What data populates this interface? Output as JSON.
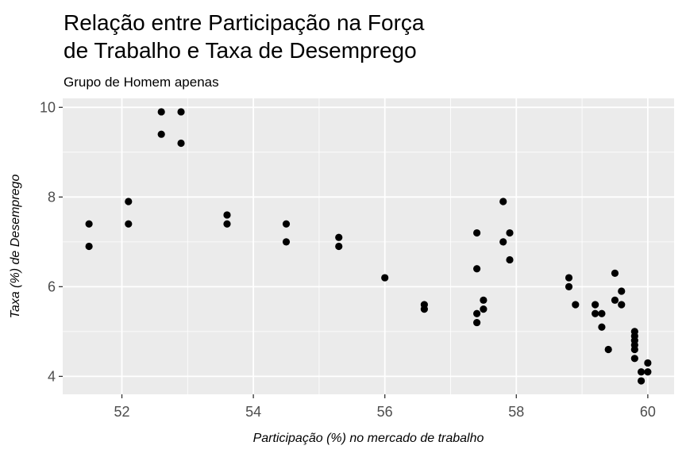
{
  "chart_data": {
    "type": "scatter",
    "title_lines": [
      "Relação entre Participação na Força",
      "de Trabalho e Taxa de Desemprego"
    ],
    "subtitle": "Grupo de Homem apenas",
    "xlabel": "Participação (%) no mercado de trabalho",
    "ylabel": "Taxa (%) de Desemprego",
    "xlim": [
      51.1,
      60.4
    ],
    "ylim": [
      3.6,
      10.2
    ],
    "x_ticks": [
      52,
      54,
      56,
      58,
      60
    ],
    "y_ticks": [
      4,
      6,
      8,
      10
    ],
    "x_tick_labels": [
      "52",
      "54",
      "56",
      "58",
      "60"
    ],
    "y_tick_labels": [
      "4",
      "6",
      "8",
      "10"
    ],
    "grid": true,
    "colors": {
      "panel": "#ebebeb",
      "grid": "#ffffff",
      "point": "#000000"
    },
    "points": [
      {
        "x": 51.5,
        "y": 7.4
      },
      {
        "x": 51.5,
        "y": 6.9
      },
      {
        "x": 52.1,
        "y": 7.9
      },
      {
        "x": 52.1,
        "y": 7.4
      },
      {
        "x": 52.6,
        "y": 9.9
      },
      {
        "x": 52.6,
        "y": 9.4
      },
      {
        "x": 52.9,
        "y": 9.9
      },
      {
        "x": 52.9,
        "y": 9.2
      },
      {
        "x": 53.6,
        "y": 7.6
      },
      {
        "x": 53.6,
        "y": 7.4
      },
      {
        "x": 54.5,
        "y": 7.4
      },
      {
        "x": 54.5,
        "y": 7.0
      },
      {
        "x": 55.3,
        "y": 7.1
      },
      {
        "x": 55.3,
        "y": 6.9
      },
      {
        "x": 56.0,
        "y": 6.2
      },
      {
        "x": 56.6,
        "y": 5.6
      },
      {
        "x": 56.6,
        "y": 5.5
      },
      {
        "x": 57.4,
        "y": 7.2
      },
      {
        "x": 57.4,
        "y": 6.4
      },
      {
        "x": 57.4,
        "y": 5.4
      },
      {
        "x": 57.4,
        "y": 5.2
      },
      {
        "x": 57.5,
        "y": 5.7
      },
      {
        "x": 57.5,
        "y": 5.5
      },
      {
        "x": 57.8,
        "y": 7.9
      },
      {
        "x": 57.8,
        "y": 7.0
      },
      {
        "x": 57.9,
        "y": 7.2
      },
      {
        "x": 57.9,
        "y": 6.6
      },
      {
        "x": 58.8,
        "y": 6.2
      },
      {
        "x": 58.8,
        "y": 6.0
      },
      {
        "x": 58.9,
        "y": 5.6
      },
      {
        "x": 59.2,
        "y": 5.6
      },
      {
        "x": 59.2,
        "y": 5.4
      },
      {
        "x": 59.3,
        "y": 5.4
      },
      {
        "x": 59.3,
        "y": 5.1
      },
      {
        "x": 59.4,
        "y": 4.6
      },
      {
        "x": 59.5,
        "y": 6.3
      },
      {
        "x": 59.5,
        "y": 5.7
      },
      {
        "x": 59.6,
        "y": 5.9
      },
      {
        "x": 59.6,
        "y": 5.6
      },
      {
        "x": 59.8,
        "y": 5.0
      },
      {
        "x": 59.8,
        "y": 4.9
      },
      {
        "x": 59.8,
        "y": 4.8
      },
      {
        "x": 59.8,
        "y": 4.7
      },
      {
        "x": 59.8,
        "y": 4.6
      },
      {
        "x": 59.8,
        "y": 4.4
      },
      {
        "x": 59.9,
        "y": 4.1
      },
      {
        "x": 59.9,
        "y": 3.9
      },
      {
        "x": 60.0,
        "y": 4.3
      },
      {
        "x": 60.0,
        "y": 4.1
      }
    ]
  }
}
